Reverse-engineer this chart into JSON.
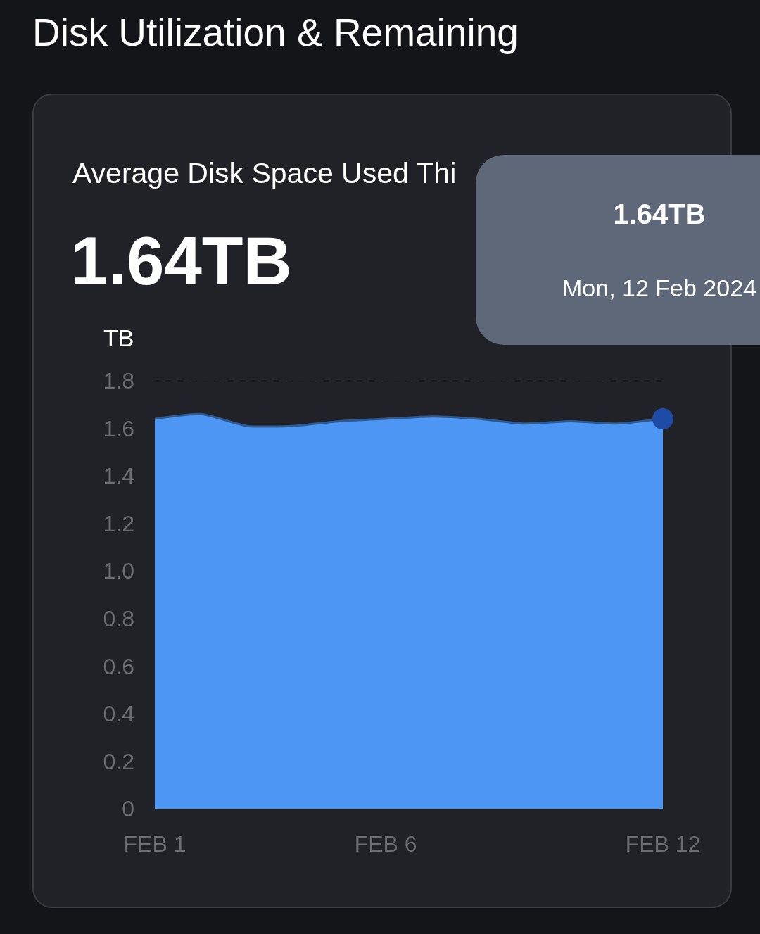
{
  "chart_data": {
    "type": "area",
    "title": "Disk Utilization & Remaining",
    "subtitle": "Average Disk Space Used Thi",
    "ylabel": "TB",
    "annotations": [
      "1.64TB",
      "1.64TB",
      "Mon, 12 Feb 2024"
    ],
    "x": [
      "2024-02-01",
      "2024-02-02",
      "2024-02-03",
      "2024-02-04",
      "2024-02-05",
      "2024-02-06",
      "2024-02-07",
      "2024-02-08",
      "2024-02-09",
      "2024-02-10",
      "2024-02-11",
      "2024-02-12"
    ],
    "series": [
      {
        "color": "#4d96f4",
        "values": [
          1.64,
          1.66,
          1.61,
          1.61,
          1.63,
          1.64,
          1.65,
          1.64,
          1.62,
          1.63,
          1.62,
          1.64
        ]
      },
      {
        "type": "scatter",
        "x": [
          "2024-02-12"
        ],
        "values": [
          1.64
        ],
        "color": "#1e4ba6",
        "marker": "circle"
      }
    ],
    "xlim": [
      "2024-02-01",
      "2024-02-12"
    ],
    "xticks": [
      {
        "value": "2024-02-01",
        "label": "FEB 1"
      },
      {
        "value": "2024-02-06",
        "label": "FEB 6"
      },
      {
        "value": "2024-02-12",
        "label": "FEB 12"
      }
    ],
    "ylim": [
      0,
      1.8
    ],
    "yticks": [
      0,
      0.2,
      0.4,
      0.6,
      0.8,
      {
        "value": 1,
        "label": "1.0"
      },
      1.2,
      1.4,
      1.6,
      1.8
    ],
    "ref_lines": [
      {
        "axis": "y",
        "value": 1.8,
        "line_style": "dashed",
        "color": "#3d3e43"
      }
    ]
  }
}
